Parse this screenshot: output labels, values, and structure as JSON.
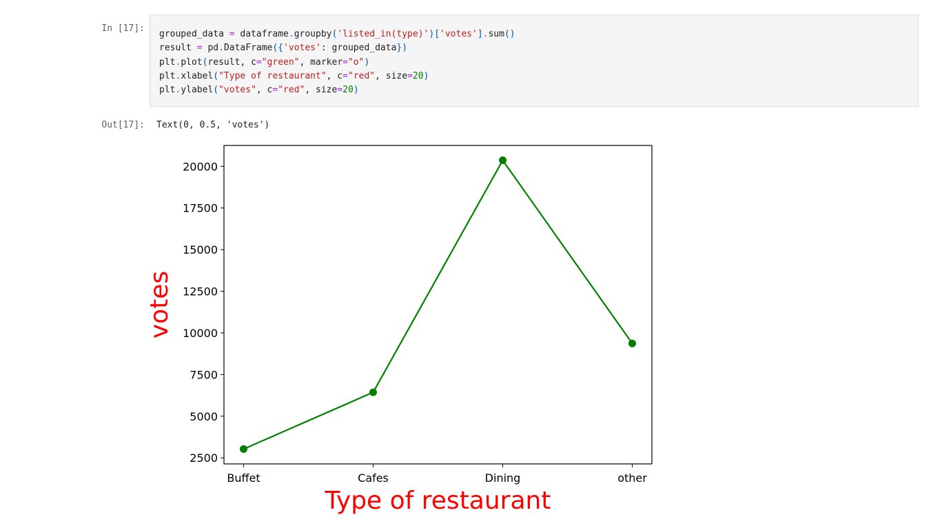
{
  "cell": {
    "in_prompt": "In [17]:",
    "out_prompt": "Out[17]:",
    "output_text": "Text(0, 0.5, 'votes')",
    "code_lines": [
      "grouped_data = dataframe.groupby('listed_in(type)')['votes'].sum()",
      "result = pd.DataFrame({'votes': grouped_data})",
      "plt.plot(result, c=\"green\", marker=\"o\")",
      "plt.xlabel(\"Type of restaurant\", c=\"red\", size=20)",
      "plt.ylabel(\"votes\", c=\"red\", size=20)"
    ]
  },
  "chart_data": {
    "type": "line",
    "categories": [
      "Buffet",
      "Cafes",
      "Dining",
      "other"
    ],
    "series": [
      {
        "values": [
          3028,
          6434,
          20363,
          9367
        ],
        "color": "#008000",
        "marker": "o"
      }
    ],
    "xlabel": "Type of restaurant",
    "ylabel": "votes",
    "label_color": "#ff0000",
    "yticks": [
      2500,
      5000,
      7500,
      10000,
      12500,
      15000,
      17500,
      20000
    ],
    "ylim": [
      2136,
      21255
    ],
    "grid": false
  }
}
